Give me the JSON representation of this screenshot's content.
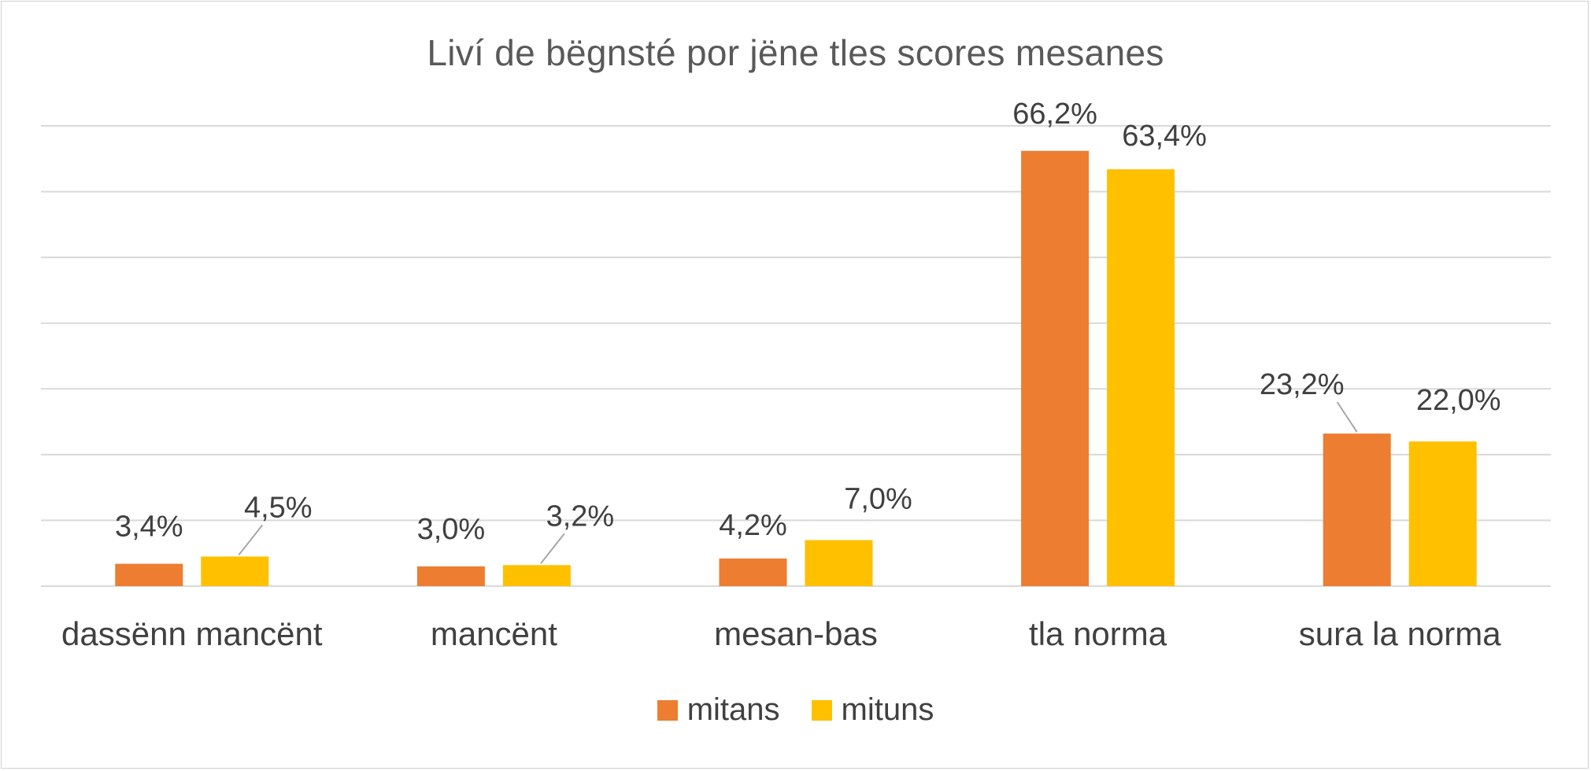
{
  "chart_data": {
    "type": "bar",
    "title": "Liví de bëgnsté por jëne tles scores mesanes",
    "categories": [
      "dassënn mancënt",
      "mancënt",
      "mesan-bas",
      "tla norma",
      "sura la norma"
    ],
    "series": [
      {
        "name": "mitans",
        "color": "#ED7D31",
        "values": [
          3.4,
          3.0,
          4.2,
          66.2,
          23.2
        ],
        "labels": [
          "3,4%",
          "3,0%",
          "4,2%",
          "66,2%",
          "23,2%"
        ]
      },
      {
        "name": "mituns",
        "color": "#FFC000",
        "values": [
          4.5,
          3.2,
          7.0,
          63.4,
          22.0
        ],
        "labels": [
          "4,5%",
          "3,2%",
          "7,0%",
          "63,4%",
          "22,0%"
        ]
      }
    ],
    "ylim": [
      0,
      70
    ],
    "grid": true,
    "legend_position": "bottom"
  }
}
